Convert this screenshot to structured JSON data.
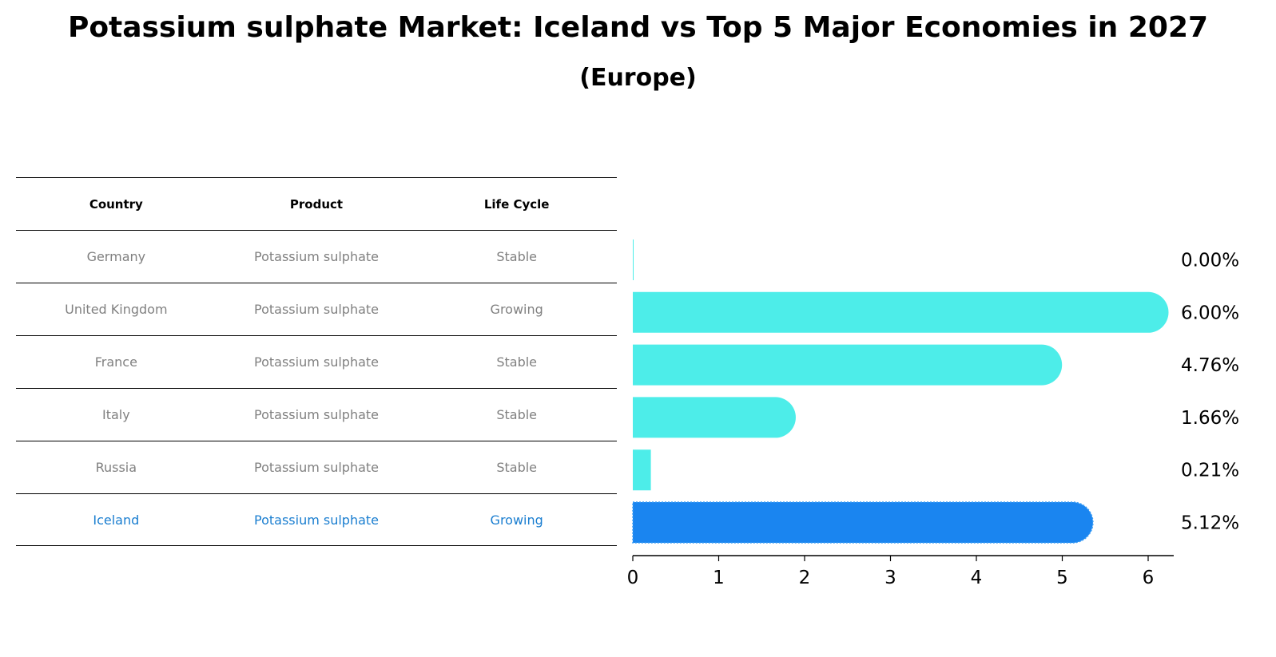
{
  "title": "Potassium sulphate Market: Iceland vs Top 5 Major Economies in 2027",
  "subtitle": "(Europe)",
  "table": {
    "headers": [
      "Country",
      "Product",
      "Life Cycle"
    ],
    "rows": [
      {
        "country": "Germany",
        "product": "Potassium sulphate",
        "life_cycle": "Stable"
      },
      {
        "country": "United Kingdom",
        "product": "Potassium sulphate",
        "life_cycle": "Growing"
      },
      {
        "country": "France",
        "product": "Potassium sulphate",
        "life_cycle": "Stable"
      },
      {
        "country": "Italy",
        "product": "Potassium sulphate",
        "life_cycle": "Stable"
      },
      {
        "country": "Russia",
        "product": "Potassium sulphate",
        "life_cycle": "Stable"
      },
      {
        "country": "Iceland",
        "product": "Potassium sulphate",
        "life_cycle": "Growing"
      }
    ],
    "highlight_row": "Iceland"
  },
  "colors": {
    "bar": "#4dede9",
    "highlight_bar": "#1a85f0",
    "highlight_text": "#1a7ed0",
    "muted_text": "#808080"
  },
  "chart_data": {
    "type": "bar",
    "orientation": "horizontal",
    "categories": [
      "Germany",
      "United Kingdom",
      "France",
      "Italy",
      "Russia",
      "Iceland"
    ],
    "values": [
      0.0,
      6.0,
      4.76,
      1.66,
      0.21,
      5.12
    ],
    "data_labels": [
      "0.00%",
      "6.00%",
      "4.76%",
      "1.66%",
      "0.21%",
      "5.12%"
    ],
    "highlight": "Iceland",
    "xlim": [
      0,
      6.3
    ],
    "xticks": [
      "0",
      "1",
      "2",
      "3",
      "4",
      "5",
      "6"
    ],
    "grid": false
  }
}
